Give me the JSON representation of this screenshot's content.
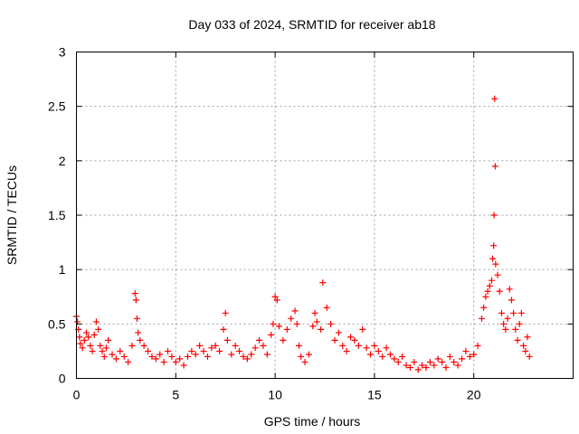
{
  "chart_data": {
    "type": "scatter",
    "title": "Day 033 of 2024, SRMTID for receiver ab18",
    "xlabel": "GPS time / hours",
    "ylabel": "SRMTID / TECUs",
    "xlim": [
      0,
      25
    ],
    "ylim": [
      0,
      3
    ],
    "xticks": [
      0,
      5,
      10,
      15,
      20
    ],
    "xtick_labels": [
      "0",
      "5",
      "10",
      "15",
      "20"
    ],
    "yticks": [
      0,
      0.5,
      1,
      1.5,
      2,
      2.5,
      3
    ],
    "ytick_labels": [
      "0",
      "0.5",
      "1",
      "1.5",
      "2",
      "2.5",
      "3"
    ],
    "grid": true,
    "marker": "+",
    "series": [
      {
        "name": "SRMTID",
        "color": "#ff0000",
        "x": [
          0.0,
          0.05,
          0.1,
          0.15,
          0.2,
          0.3,
          0.4,
          0.5,
          0.6,
          0.7,
          0.8,
          0.9,
          1.0,
          1.1,
          1.2,
          1.3,
          1.4,
          1.5,
          1.6,
          1.8,
          2.0,
          2.2,
          2.4,
          2.6,
          2.8,
          2.95,
          3.0,
          3.05,
          3.1,
          3.2,
          3.4,
          3.6,
          3.8,
          4.0,
          4.2,
          4.4,
          4.6,
          4.8,
          5.0,
          5.2,
          5.4,
          5.6,
          5.8,
          6.0,
          6.2,
          6.4,
          6.6,
          6.8,
          7.0,
          7.2,
          7.4,
          7.5,
          7.6,
          7.8,
          8.0,
          8.2,
          8.4,
          8.6,
          8.8,
          9.0,
          9.2,
          9.4,
          9.6,
          9.8,
          9.9,
          10.0,
          10.1,
          10.2,
          10.4,
          10.6,
          10.8,
          11.0,
          11.1,
          11.2,
          11.3,
          11.5,
          11.7,
          11.9,
          12.0,
          12.1,
          12.3,
          12.4,
          12.6,
          12.8,
          13.0,
          13.2,
          13.4,
          13.6,
          13.8,
          14.0,
          14.2,
          14.4,
          14.6,
          14.8,
          15.0,
          15.2,
          15.4,
          15.6,
          15.8,
          16.0,
          16.2,
          16.4,
          16.6,
          16.8,
          17.0,
          17.2,
          17.4,
          17.6,
          17.8,
          18.0,
          18.2,
          18.4,
          18.6,
          18.8,
          19.0,
          19.2,
          19.4,
          19.6,
          19.8,
          20.0,
          20.2,
          20.4,
          20.5,
          20.6,
          20.7,
          20.8,
          20.9,
          20.95,
          21.0,
          21.02,
          21.05,
          21.08,
          21.1,
          21.2,
          21.3,
          21.4,
          21.5,
          21.6,
          21.7,
          21.8,
          21.9,
          22.0,
          22.1,
          22.2,
          22.3,
          22.4,
          22.5,
          22.6,
          22.7,
          22.8
        ],
        "y": [
          0.57,
          0.52,
          0.45,
          0.38,
          0.32,
          0.28,
          0.35,
          0.42,
          0.38,
          0.3,
          0.25,
          0.4,
          0.52,
          0.45,
          0.3,
          0.25,
          0.2,
          0.28,
          0.35,
          0.22,
          0.18,
          0.25,
          0.2,
          0.15,
          0.3,
          0.78,
          0.72,
          0.55,
          0.42,
          0.35,
          0.3,
          0.25,
          0.2,
          0.18,
          0.22,
          0.15,
          0.25,
          0.2,
          0.15,
          0.18,
          0.12,
          0.2,
          0.25,
          0.22,
          0.3,
          0.25,
          0.2,
          0.28,
          0.3,
          0.25,
          0.45,
          0.6,
          0.35,
          0.22,
          0.3,
          0.25,
          0.2,
          0.18,
          0.22,
          0.28,
          0.35,
          0.3,
          0.22,
          0.4,
          0.5,
          0.75,
          0.72,
          0.48,
          0.35,
          0.45,
          0.55,
          0.62,
          0.5,
          0.3,
          0.2,
          0.15,
          0.22,
          0.48,
          0.6,
          0.52,
          0.45,
          0.88,
          0.65,
          0.5,
          0.35,
          0.42,
          0.3,
          0.25,
          0.38,
          0.35,
          0.3,
          0.45,
          0.28,
          0.22,
          0.3,
          0.25,
          0.2,
          0.28,
          0.22,
          0.18,
          0.15,
          0.2,
          0.12,
          0.1,
          0.15,
          0.08,
          0.12,
          0.1,
          0.15,
          0.12,
          0.18,
          0.15,
          0.1,
          0.2,
          0.15,
          0.12,
          0.18,
          0.25,
          0.2,
          0.22,
          0.3,
          0.55,
          0.65,
          0.75,
          0.8,
          0.85,
          0.9,
          1.1,
          1.22,
          1.5,
          2.57,
          1.95,
          1.05,
          0.95,
          0.8,
          0.6,
          0.5,
          0.45,
          0.55,
          0.82,
          0.72,
          0.6,
          0.45,
          0.35,
          0.5,
          0.6,
          0.3,
          0.25,
          0.38,
          0.2
        ]
      }
    ]
  }
}
